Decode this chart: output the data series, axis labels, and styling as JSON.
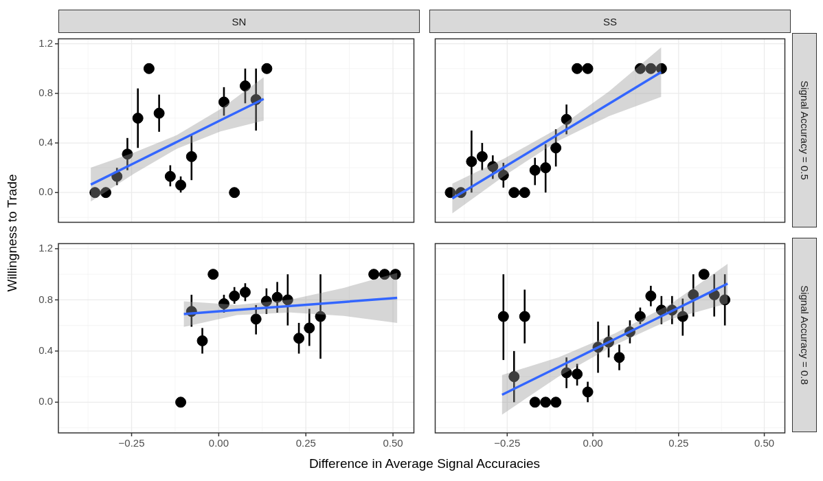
{
  "chart_data": [
    {
      "type": "scatter",
      "title": "SN",
      "ylabel": "Willingness to Trade",
      "xlim": [
        -0.46,
        0.56
      ],
      "ylim": [
        -0.24,
        1.24
      ],
      "xticks": [
        -0.25,
        0,
        0.25,
        0.5
      ],
      "yticks": [
        {
          "value": 0,
          "label": "0.0"
        },
        {
          "value": 0.4,
          "label": "0.4"
        },
        {
          "value": 0.8,
          "label": "0.8"
        },
        {
          "value": 1.2,
          "label": "1.2"
        }
      ],
      "tick_labels": "y",
      "grid": true,
      "series": [
        {
          "marker": "circle",
          "color": "#000000",
          "x": [
            -0.355,
            -0.324,
            -0.292,
            -0.262,
            -0.232,
            -0.2,
            -0.171,
            -0.139,
            -0.109,
            -0.078,
            0.015,
            0.045,
            0.076,
            0.107,
            0.138
          ],
          "values": [
            0,
            0,
            0.13,
            0.31,
            0.6,
            1.0,
            0.64,
            0.13,
            0.06,
            0.29,
            0.73,
            0,
            0.86,
            0.75,
            1.0
          ],
          "errors": [
            null,
            null,
            [
              0.06,
              0.2
            ],
            [
              0.18,
              0.44
            ],
            [
              0.36,
              0.84
            ],
            null,
            [
              0.49,
              0.79
            ],
            [
              0.05,
              0.22
            ],
            [
              0,
              0.13
            ],
            [
              0.1,
              0.46
            ],
            [
              0.62,
              0.85
            ],
            null,
            [
              0.72,
              1.0
            ],
            [
              0.5,
              1.0
            ],
            null
          ]
        },
        {
          "type": "line",
          "color": "#3366ff",
          "x": [
            -0.367,
            -0.243,
            -0.119,
            0.005,
            0.129
          ],
          "values": [
            0.064,
            0.237,
            0.41,
            0.583,
            0.755
          ],
          "lower": [
            -0.072,
            0.152,
            0.355,
            0.493,
            0.58
          ],
          "upper": [
            0.2,
            0.322,
            0.465,
            0.673,
            0.93
          ]
        }
      ]
    },
    {
      "type": "scatter",
      "title": "SS",
      "y2label": "Signal Accuracy = 0.5",
      "xlim": [
        -0.46,
        0.56
      ],
      "ylim": [
        -0.24,
        1.24
      ],
      "xticks": [
        -0.25,
        0,
        0.25,
        0.5
      ],
      "yticks": [
        0,
        0.4,
        0.8,
        1.2
      ],
      "tick_labels": false,
      "grid": true,
      "series": [
        {
          "marker": "circle",
          "color": "#000000",
          "x": [
            -0.416,
            -0.385,
            -0.354,
            -0.323,
            -0.292,
            -0.261,
            -0.23,
            -0.199,
            -0.169,
            -0.138,
            -0.108,
            -0.077,
            -0.046,
            -0.015,
            0.138,
            0.169,
            0.2
          ],
          "values": [
            0,
            0,
            0.25,
            0.29,
            0.21,
            0.14,
            0,
            0,
            0.18,
            0.2,
            0.36,
            0.59,
            1.0,
            1.0,
            1.0,
            1.0,
            1.0
          ],
          "errors": [
            null,
            null,
            [
              0,
              0.5
            ],
            [
              0.18,
              0.4
            ],
            [
              0.11,
              0.3
            ],
            [
              0.04,
              0.24
            ],
            null,
            null,
            [
              0.06,
              0.28
            ],
            [
              0,
              0.39
            ],
            [
              0.21,
              0.51
            ],
            [
              0.47,
              0.71
            ],
            null,
            null,
            null,
            null,
            null
          ]
        },
        {
          "type": "line",
          "color": "#3366ff",
          "x": [
            -0.41,
            -0.258,
            -0.105,
            0.047,
            0.199
          ],
          "values": [
            -0.048,
            0.206,
            0.462,
            0.716,
            0.971
          ],
          "lower": [
            -0.168,
            0.136,
            0.412,
            0.616,
            0.771
          ],
          "upper": [
            0.072,
            0.276,
            0.512,
            0.816,
            1.171
          ]
        }
      ]
    },
    {
      "type": "scatter",
      "xlabel": "Difference in Average Signal Accuracies",
      "xlim": [
        -0.46,
        0.56
      ],
      "ylim": [
        -0.24,
        1.24
      ],
      "xticks": [
        {
          "value": -0.25,
          "label": "−0.25"
        },
        {
          "value": 0,
          "label": "0.00"
        },
        {
          "value": 0.25,
          "label": "0.25"
        },
        {
          "value": 0.5,
          "label": "0.50"
        }
      ],
      "yticks": [
        {
          "value": 0,
          "label": "0.0"
        },
        {
          "value": 0.4,
          "label": "0.4"
        },
        {
          "value": 0.8,
          "label": "0.8"
        },
        {
          "value": 1.2,
          "label": "1.2"
        }
      ],
      "grid": true,
      "series": [
        {
          "marker": "circle",
          "color": "#000000",
          "x": [
            -0.109,
            -0.078,
            -0.047,
            -0.016,
            0.015,
            0.045,
            0.076,
            0.107,
            0.137,
            0.168,
            0.198,
            0.23,
            0.26,
            0.292,
            0.445,
            0.476,
            0.507
          ],
          "values": [
            0,
            0.71,
            0.48,
            1.0,
            0.77,
            0.83,
            0.86,
            0.65,
            0.79,
            0.82,
            0.8,
            0.5,
            0.58,
            0.67,
            1.0,
            1.0,
            1.0
          ],
          "errors": [
            null,
            [
              0.59,
              0.84
            ],
            [
              0.38,
              0.58
            ],
            null,
            [
              0.7,
              0.84
            ],
            [
              0.77,
              0.9
            ],
            [
              0.79,
              0.93
            ],
            [
              0.53,
              0.76
            ],
            [
              0.69,
              0.89
            ],
            [
              0.7,
              0.94
            ],
            [
              0.6,
              1.0
            ],
            [
              0.38,
              0.62
            ],
            [
              0.44,
              0.73
            ],
            [
              0.34,
              1.0
            ],
            null,
            null,
            null
          ]
        },
        {
          "type": "line",
          "color": "#3366ff",
          "x": [
            -0.1,
            0.053,
            0.206,
            0.359,
            0.512
          ],
          "values": [
            0.689,
            0.721,
            0.752,
            0.784,
            0.815
          ],
          "lower": [
            0.589,
            0.681,
            0.702,
            0.674,
            0.62
          ],
          "upper": [
            0.789,
            0.761,
            0.802,
            0.894,
            1.01
          ]
        }
      ]
    },
    {
      "type": "scatter",
      "y2label": "Signal Accuracy = 0.8",
      "xlim": [
        -0.46,
        0.56
      ],
      "ylim": [
        -0.24,
        1.24
      ],
      "xticks": [
        {
          "value": -0.25,
          "label": "−0.25"
        },
        {
          "value": 0,
          "label": "0.00"
        },
        {
          "value": 0.25,
          "label": "0.25"
        },
        {
          "value": 0.5,
          "label": "0.50"
        }
      ],
      "yticks": [
        0,
        0.4,
        0.8,
        1.2
      ],
      "tick_labels": "x",
      "grid": true,
      "series": [
        {
          "marker": "circle",
          "color": "#000000",
          "x": [
            -0.261,
            -0.23,
            -0.199,
            -0.169,
            -0.138,
            -0.108,
            -0.077,
            -0.046,
            -0.015,
            0.015,
            0.046,
            0.077,
            0.108,
            0.138,
            0.169,
            0.2,
            0.231,
            0.262,
            0.293,
            0.324,
            0.354,
            0.385
          ],
          "values": [
            0.67,
            0.2,
            0.67,
            0,
            0,
            0,
            0.23,
            0.22,
            0.08,
            0.43,
            0.47,
            0.35,
            0.55,
            0.67,
            0.83,
            0.72,
            0.72,
            0.67,
            0.84,
            1.0,
            0.84,
            0.8
          ],
          "errors": [
            [
              0.33,
              1.0
            ],
            [
              0,
              0.4
            ],
            [
              0.46,
              0.88
            ],
            null,
            null,
            null,
            [
              0.11,
              0.35
            ],
            [
              0.13,
              0.3
            ],
            [
              0,
              0.16
            ],
            [
              0.23,
              0.63
            ],
            [
              0.35,
              0.6
            ],
            [
              0.25,
              0.45
            ],
            [
              0.46,
              0.64
            ],
            [
              0.61,
              0.74
            ],
            [
              0.75,
              0.91
            ],
            [
              0.61,
              0.83
            ],
            [
              0.61,
              0.83
            ],
            [
              0.52,
              0.81
            ],
            [
              0.67,
              1.0
            ],
            null,
            [
              0.67,
              1.0
            ],
            [
              0.6,
              1.0
            ]
          ]
        },
        {
          "type": "line",
          "color": "#3366ff",
          "x": [
            -0.265,
            -0.1,
            0.064,
            0.229,
            0.393
          ],
          "values": [
            0.058,
            0.276,
            0.493,
            0.711,
            0.927
          ],
          "lower": [
            -0.097,
            0.201,
            0.448,
            0.651,
            0.772
          ],
          "upper": [
            0.213,
            0.351,
            0.538,
            0.771,
            1.082
          ]
        }
      ]
    }
  ]
}
